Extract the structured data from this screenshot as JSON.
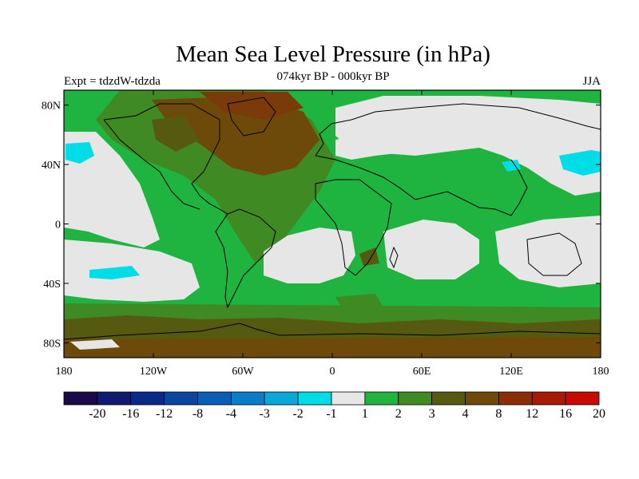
{
  "title": "Mean Sea Level Pressure (in hPa)",
  "subtitle": "074kyr BP - 000kyr BP",
  "experiment": "Expt = tdzdW-tdzda",
  "season": "JJA",
  "axes": {
    "lat_labels": [
      "80N",
      "40N",
      "0",
      "40S",
      "80S"
    ],
    "lat_values": [
      80,
      40,
      0,
      -40,
      -80
    ],
    "lon_labels": [
      "180",
      "120W",
      "60W",
      "0",
      "60E",
      "120E",
      "180"
    ],
    "lon_values": [
      -180,
      -120,
      -60,
      0,
      60,
      120,
      180
    ]
  },
  "colorbar": {
    "labels": [
      "-20",
      "-16",
      "-12",
      "-8",
      "-4",
      "-3",
      "-2",
      "-1",
      "1",
      "2",
      "3",
      "4",
      "8",
      "12",
      "16",
      "20"
    ],
    "colors": [
      "#1a0a4a",
      "#101a6e",
      "#0a2a8a",
      "#0a45a0",
      "#0a5eb5",
      "#0a7cc8",
      "#08a8d8",
      "#00dde6",
      "#e6e6e6",
      "#1fb33f",
      "#3f8a22",
      "#555a10",
      "#6e4a0a",
      "#8a2e08",
      "#a81a06",
      "#c80a04"
    ]
  }
}
